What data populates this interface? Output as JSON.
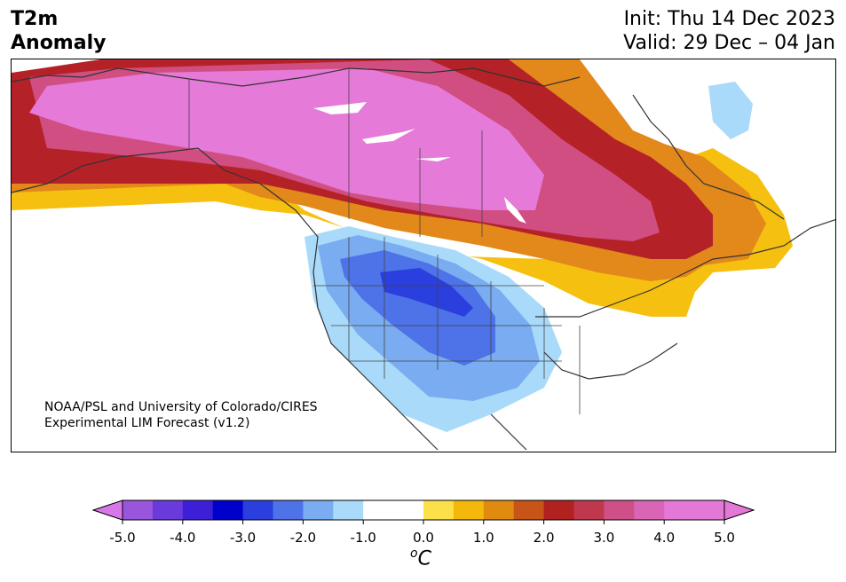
{
  "title": {
    "line1": "T2m",
    "line2": "Anomaly"
  },
  "dates": {
    "init": "Init: Thu 14 Dec 2023",
    "valid": "Valid: 29 Dec – 04 Jan"
  },
  "credit": {
    "line1": "NOAA/PSL and University of Colorado/CIRES",
    "line2": "Experimental LIM Forecast (v1.2)"
  },
  "colorbar": {
    "unit_base": "C",
    "unit_sup": "o",
    "ticks": [
      "-5.0",
      "-4.0",
      "-3.0",
      "-2.0",
      "-1.0",
      "0.0",
      "1.0",
      "2.0",
      "3.0",
      "4.0",
      "5.0"
    ],
    "colors": [
      "#9a55dd",
      "#6a3add",
      "#3c1fd6",
      "#0000cc",
      "#2a3fdd",
      "#4e72e8",
      "#79acf0",
      "#a9daf9",
      "#ffffff",
      "#ffffff",
      "#fce04a",
      "#f3b80a",
      "#e08a10",
      "#c85418",
      "#b0211f",
      "#c0384e",
      "#cf5088",
      "#d865b5",
      "#e478d6",
      "#e478d6"
    ],
    "under_color": "#d878e8",
    "over_color": "#e478d6"
  },
  "legend_colors": {
    "pink_max": "#e67ad9",
    "magenta": "#d04e82",
    "red": "#b42228",
    "orange": "#e3881a",
    "yellow": "#f5c010",
    "light_yellow": "#fde14e",
    "light_blue": "#a9daf9",
    "mid_blue": "#79acf0",
    "blue": "#4e72e8",
    "dark_blue": "#2a3fdd",
    "coast": "#333333"
  }
}
